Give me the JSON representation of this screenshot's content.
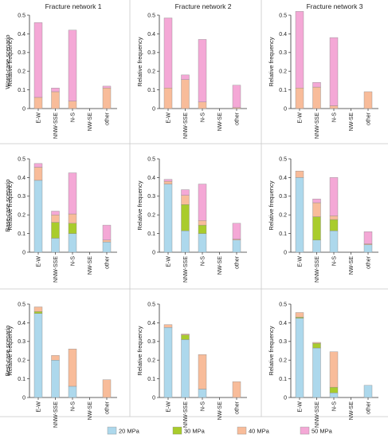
{
  "columns": [
    "Fracture network 1",
    "Fracture network 2",
    "Fracture network 3"
  ],
  "rows": [
    "Worst-case scenario",
    "Base-case scenario",
    "Best-case scenario"
  ],
  "legend": [
    {
      "label": "20 MPa",
      "color": "#add8ec"
    },
    {
      "label": "30 MPa",
      "color": "#a9cc2c"
    },
    {
      "label": "40 MPa",
      "color": "#f8bc9a"
    },
    {
      "label": "50 MPa",
      "color": "#f4a8d6"
    }
  ],
  "chart_data": {
    "type": "bar",
    "stacked": true,
    "categories": [
      "E-W",
      "NNW-SSE",
      "N-S",
      "NW-SE",
      "other"
    ],
    "ylabel": "Relative frequency",
    "ylim": [
      0,
      0.5
    ],
    "yticks": [
      "0",
      "0.1",
      "0.2",
      "0.3",
      "0.4",
      "0.5"
    ],
    "grid": false,
    "legend_position": "bottom",
    "series_names": [
      "20 MPa",
      "30 MPa",
      "40 MPa",
      "50 MPa"
    ],
    "panels": [
      {
        "row": 0,
        "col": 0,
        "values": {
          "20 MPa": [
            0,
            0,
            0,
            0,
            0
          ],
          "30 MPa": [
            0,
            0,
            0,
            0,
            0
          ],
          "40 MPa": [
            0.06,
            0.09,
            0.04,
            0,
            0.11
          ],
          "50 MPa": [
            0.4,
            0.02,
            0.38,
            0,
            0.01
          ]
        }
      },
      {
        "row": 0,
        "col": 1,
        "values": {
          "20 MPa": [
            0,
            0,
            0,
            0,
            0
          ],
          "30 MPa": [
            0,
            0,
            0,
            0,
            0
          ],
          "40 MPa": [
            0.11,
            0.155,
            0.035,
            0,
            0.005
          ],
          "50 MPa": [
            0.375,
            0.025,
            0.335,
            0,
            0.12
          ]
        }
      },
      {
        "row": 0,
        "col": 2,
        "values": {
          "20 MPa": [
            0,
            0,
            0,
            0,
            0
          ],
          "30 MPa": [
            0,
            0,
            0,
            0,
            0
          ],
          "40 MPa": [
            0.11,
            0.115,
            0.015,
            0,
            0.09
          ],
          "50 MPa": [
            0.41,
            0.025,
            0.365,
            0,
            0
          ]
        }
      },
      {
        "row": 1,
        "col": 0,
        "values": {
          "20 MPa": [
            0.385,
            0.075,
            0.1,
            0,
            0.055
          ],
          "30 MPa": [
            0,
            0.085,
            0.055,
            0,
            0
          ],
          "40 MPa": [
            0.07,
            0.04,
            0.05,
            0,
            0.01
          ],
          "50 MPa": [
            0.02,
            0.02,
            0.22,
            0,
            0.08
          ]
        }
      },
      {
        "row": 1,
        "col": 1,
        "values": {
          "20 MPa": [
            0.365,
            0.115,
            0.1,
            0,
            0.065
          ],
          "30 MPa": [
            0,
            0.14,
            0.045,
            0,
            0
          ],
          "40 MPa": [
            0.015,
            0.05,
            0.025,
            0,
            0.005
          ],
          "50 MPa": [
            0.01,
            0.03,
            0.195,
            0,
            0.085
          ]
        }
      },
      {
        "row": 1,
        "col": 2,
        "values": {
          "20 MPa": [
            0.4,
            0.065,
            0.115,
            0,
            0.04
          ],
          "30 MPa": [
            0,
            0.125,
            0.06,
            0,
            0
          ],
          "40 MPa": [
            0.035,
            0.075,
            0.02,
            0,
            0.005
          ],
          "50 MPa": [
            0,
            0.02,
            0.205,
            0,
            0.065
          ]
        }
      },
      {
        "row": 2,
        "col": 0,
        "values": {
          "20 MPa": [
            0.45,
            0.2,
            0.06,
            0,
            0
          ],
          "30 MPa": [
            0.01,
            0,
            0,
            0,
            0
          ],
          "40 MPa": [
            0.025,
            0.025,
            0.2,
            0,
            0.095
          ],
          "50 MPa": [
            0,
            0,
            0,
            0,
            0
          ]
        }
      },
      {
        "row": 2,
        "col": 1,
        "values": {
          "20 MPa": [
            0.375,
            0.31,
            0.045,
            0,
            0
          ],
          "30 MPa": [
            0,
            0.025,
            0,
            0,
            0
          ],
          "40 MPa": [
            0.015,
            0.005,
            0.185,
            0,
            0.085
          ],
          "50 MPa": [
            0,
            0,
            0,
            0,
            0
          ]
        }
      },
      {
        "row": 2,
        "col": 2,
        "values": {
          "20 MPa": [
            0.425,
            0.265,
            0.025,
            0,
            0.065
          ],
          "30 MPa": [
            0.005,
            0.025,
            0.03,
            0,
            0
          ],
          "40 MPa": [
            0.025,
            0.005,
            0.19,
            0,
            0
          ],
          "50 MPa": [
            0,
            0,
            0,
            0,
            0
          ]
        }
      }
    ]
  }
}
